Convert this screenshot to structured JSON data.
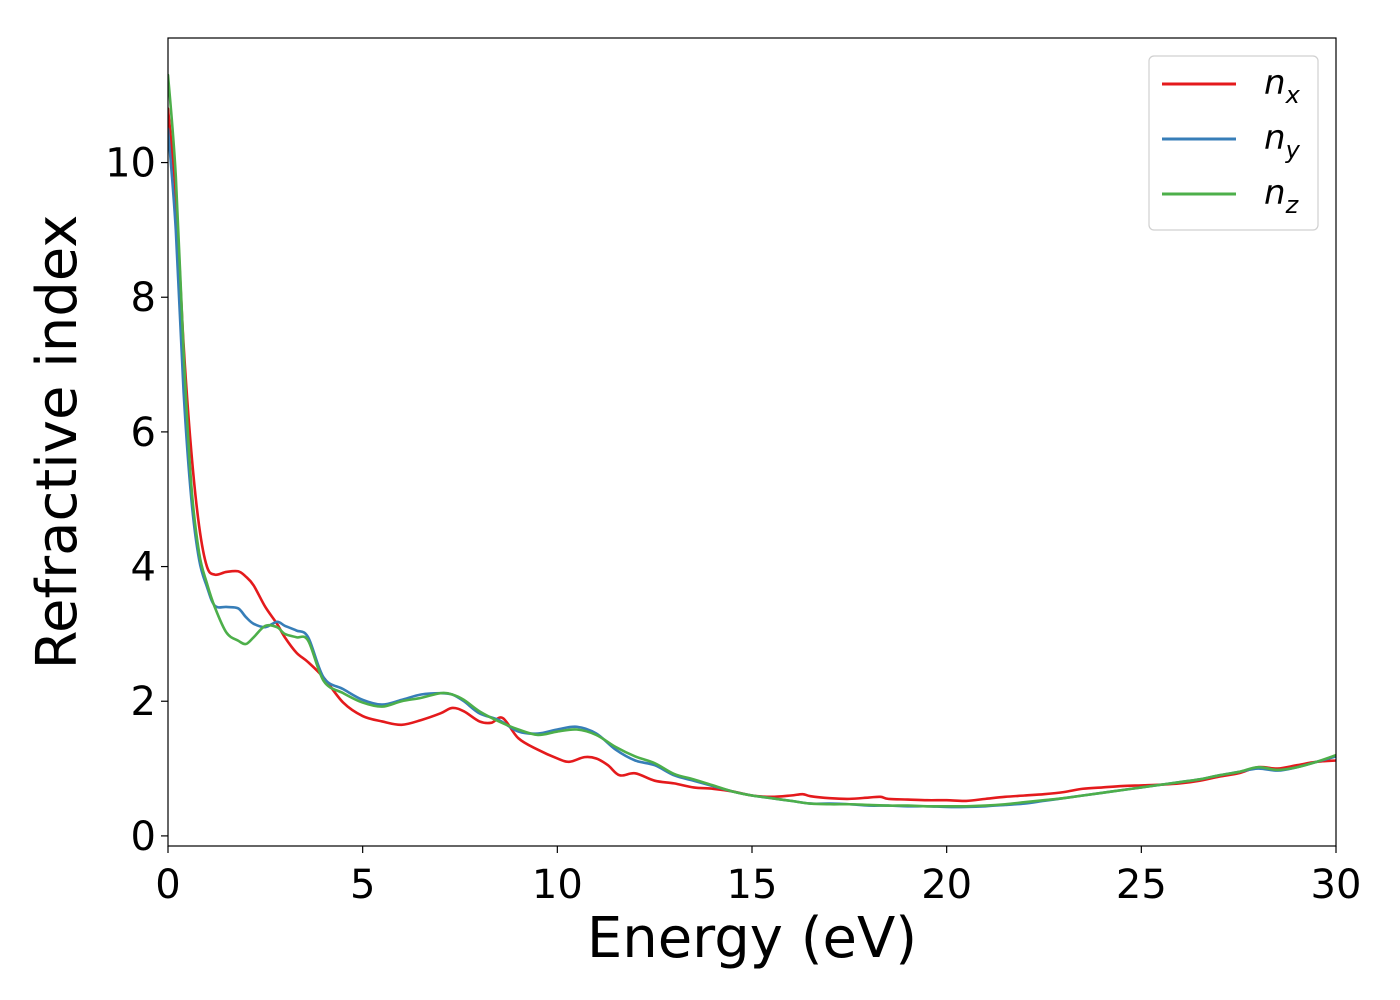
{
  "chart_data": {
    "type": "line",
    "xlabel": "Energy (eV)",
    "ylabel": "Refractive index",
    "xlim": [
      0,
      30
    ],
    "ylim": [
      -0.15,
      11.85
    ],
    "xticks": [
      0,
      5,
      10,
      15,
      20,
      25,
      30
    ],
    "xtick_labels": [
      "0",
      "5",
      "10",
      "15",
      "20",
      "25",
      "30"
    ],
    "yticks": [
      0,
      2,
      4,
      6,
      8,
      10
    ],
    "ytick_labels": [
      "0",
      "2",
      "4",
      "6",
      "8",
      "10"
    ],
    "grid": false,
    "legend_position": "top-right",
    "series": [
      {
        "name": "n_x",
        "base": "n",
        "sub": "x",
        "color": "#e41a1c",
        "x": [
          0,
          0.2,
          0.4,
          0.6,
          0.8,
          1.0,
          1.2,
          1.5,
          1.8,
          2.0,
          2.2,
          2.5,
          2.8,
          3.0,
          3.3,
          3.6,
          4.0,
          4.5,
          5.0,
          5.5,
          6.0,
          6.5,
          7.0,
          7.3,
          7.6,
          8.0,
          8.3,
          8.6,
          9.0,
          9.5,
          10.0,
          10.3,
          10.7,
          11.0,
          11.3,
          11.6,
          12.0,
          12.5,
          13.0,
          13.5,
          14.0,
          14.5,
          15.0,
          15.5,
          16.0,
          16.3,
          16.5,
          17.0,
          17.5,
          18.0,
          18.3,
          18.5,
          19.0,
          19.5,
          20.0,
          20.5,
          21.0,
          21.5,
          22.0,
          22.5,
          23.0,
          23.5,
          24.0,
          24.5,
          25.0,
          25.5,
          26.0,
          26.5,
          27.0,
          27.5,
          28.0,
          28.5,
          29.0,
          29.5,
          30.0
        ],
        "values": [
          10.8,
          9.5,
          7.3,
          5.7,
          4.6,
          4.0,
          3.88,
          3.92,
          3.93,
          3.85,
          3.72,
          3.4,
          3.15,
          2.95,
          2.72,
          2.58,
          2.35,
          1.98,
          1.78,
          1.7,
          1.65,
          1.72,
          1.82,
          1.9,
          1.85,
          1.7,
          1.68,
          1.75,
          1.45,
          1.28,
          1.15,
          1.1,
          1.17,
          1.15,
          1.05,
          0.9,
          0.93,
          0.82,
          0.78,
          0.72,
          0.7,
          0.66,
          0.6,
          0.58,
          0.6,
          0.62,
          0.59,
          0.56,
          0.55,
          0.57,
          0.58,
          0.55,
          0.54,
          0.53,
          0.53,
          0.52,
          0.55,
          0.58,
          0.6,
          0.62,
          0.65,
          0.7,
          0.72,
          0.74,
          0.75,
          0.76,
          0.78,
          0.82,
          0.88,
          0.93,
          1.02,
          1.0,
          1.05,
          1.1,
          1.12
        ]
      },
      {
        "name": "n_y",
        "base": "n",
        "sub": "y",
        "color": "#377eb8",
        "x": [
          0,
          0.2,
          0.4,
          0.6,
          0.8,
          1.0,
          1.2,
          1.5,
          1.8,
          2.0,
          2.2,
          2.5,
          2.8,
          3.0,
          3.3,
          3.6,
          4.0,
          4.5,
          5.0,
          5.5,
          6.0,
          6.5,
          7.0,
          7.3,
          7.6,
          8.0,
          8.5,
          9.0,
          9.5,
          10.0,
          10.5,
          11.0,
          11.5,
          12.0,
          12.5,
          13.0,
          13.5,
          14.0,
          14.5,
          15.0,
          15.5,
          16.0,
          16.5,
          17.0,
          17.5,
          18.0,
          18.5,
          19.0,
          19.5,
          20.0,
          20.5,
          21.0,
          21.5,
          22.0,
          22.5,
          23.0,
          23.5,
          24.0,
          24.5,
          25.0,
          25.5,
          26.0,
          26.5,
          27.0,
          27.5,
          28.0,
          28.5,
          29.0,
          29.5,
          30.0
        ],
        "values": [
          10.5,
          9.0,
          6.6,
          5.0,
          4.1,
          3.7,
          3.42,
          3.4,
          3.38,
          3.25,
          3.15,
          3.1,
          3.18,
          3.12,
          3.05,
          2.95,
          2.35,
          2.18,
          2.02,
          1.95,
          2.02,
          2.1,
          2.12,
          2.1,
          2.0,
          1.82,
          1.72,
          1.55,
          1.52,
          1.58,
          1.62,
          1.52,
          1.28,
          1.12,
          1.05,
          0.9,
          0.82,
          0.74,
          0.66,
          0.6,
          0.56,
          0.52,
          0.48,
          0.48,
          0.47,
          0.45,
          0.45,
          0.44,
          0.44,
          0.43,
          0.43,
          0.44,
          0.46,
          0.48,
          0.52,
          0.56,
          0.6,
          0.64,
          0.68,
          0.72,
          0.76,
          0.8,
          0.84,
          0.9,
          0.95,
          1.0,
          0.97,
          1.02,
          1.1,
          1.18
        ]
      },
      {
        "name": "n_z",
        "base": "n",
        "sub": "z",
        "color": "#4daf4a",
        "x": [
          0,
          0.2,
          0.4,
          0.6,
          0.8,
          1.0,
          1.2,
          1.5,
          1.8,
          2.0,
          2.2,
          2.5,
          2.8,
          3.0,
          3.3,
          3.6,
          4.0,
          4.5,
          5.0,
          5.5,
          6.0,
          6.5,
          7.0,
          7.3,
          7.6,
          8.0,
          8.5,
          9.0,
          9.5,
          10.0,
          10.5,
          11.0,
          11.5,
          12.0,
          12.5,
          13.0,
          13.5,
          14.0,
          14.5,
          15.0,
          15.5,
          16.0,
          16.5,
          17.0,
          17.5,
          18.0,
          18.5,
          19.0,
          19.5,
          20.0,
          20.5,
          21.0,
          21.5,
          22.0,
          22.5,
          23.0,
          23.5,
          24.0,
          24.5,
          25.0,
          25.5,
          26.0,
          26.5,
          27.0,
          27.5,
          28.0,
          28.5,
          29.0,
          29.5,
          30.0
        ],
        "values": [
          11.3,
          9.8,
          7.2,
          5.2,
          4.2,
          3.75,
          3.4,
          3.02,
          2.9,
          2.85,
          2.95,
          3.12,
          3.1,
          3.0,
          2.95,
          2.9,
          2.3,
          2.12,
          1.98,
          1.92,
          2.0,
          2.05,
          2.12,
          2.1,
          2.02,
          1.85,
          1.7,
          1.58,
          1.5,
          1.55,
          1.58,
          1.5,
          1.32,
          1.18,
          1.08,
          0.92,
          0.84,
          0.75,
          0.66,
          0.6,
          0.56,
          0.52,
          0.48,
          0.47,
          0.47,
          0.46,
          0.45,
          0.45,
          0.44,
          0.44,
          0.44,
          0.45,
          0.47,
          0.5,
          0.53,
          0.56,
          0.6,
          0.64,
          0.68,
          0.72,
          0.76,
          0.8,
          0.84,
          0.9,
          0.95,
          1.02,
          0.98,
          1.02,
          1.1,
          1.2
        ]
      }
    ]
  }
}
